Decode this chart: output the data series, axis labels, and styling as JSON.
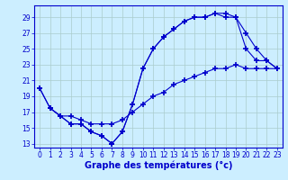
{
  "title": "Graphe des températures (°c)",
  "background_color": "#cceeff",
  "grid_color": "#aacccc",
  "line_color": "#0000cc",
  "xlim": [
    -0.5,
    23.5
  ],
  "ylim": [
    12.5,
    30.5
  ],
  "xticks": [
    0,
    1,
    2,
    3,
    4,
    5,
    6,
    7,
    8,
    9,
    10,
    11,
    12,
    13,
    14,
    15,
    16,
    17,
    18,
    19,
    20,
    21,
    22,
    23
  ],
  "yticks": [
    13,
    15,
    17,
    19,
    21,
    23,
    25,
    27,
    29
  ],
  "s1_x": [
    0,
    1,
    2,
    3,
    4,
    5,
    6,
    7,
    8,
    9,
    10,
    11,
    12,
    13,
    14,
    15,
    16,
    17,
    18,
    19,
    20,
    21,
    22,
    23
  ],
  "s1_y": [
    20.0,
    17.5,
    16.5,
    15.5,
    15.5,
    14.5,
    14.0,
    13.0,
    14.5,
    18.0,
    22.5,
    25.0,
    26.5,
    27.5,
    28.5,
    29.0,
    29.0,
    29.5,
    29.5,
    29.0,
    25.0,
    23.5,
    23.5,
    22.5
  ],
  "s2_x": [
    0,
    1,
    2,
    3,
    4,
    5,
    6,
    7,
    8,
    9,
    10,
    11,
    12,
    13,
    14,
    15,
    16,
    17,
    18,
    19,
    20,
    21,
    22,
    23
  ],
  "s2_y": [
    20.0,
    17.5,
    16.5,
    15.5,
    15.5,
    14.5,
    14.0,
    13.0,
    14.5,
    18.0,
    22.5,
    25.0,
    26.5,
    27.5,
    28.5,
    29.0,
    29.0,
    29.5,
    29.0,
    29.0,
    27.0,
    25.0,
    23.5,
    22.5
  ],
  "s3_x": [
    1,
    2,
    3,
    4,
    5,
    6,
    7,
    8,
    9,
    10,
    11,
    12,
    13,
    14,
    15,
    16,
    17,
    18,
    19,
    20,
    21,
    22,
    23
  ],
  "s3_y": [
    17.5,
    16.5,
    16.5,
    16.0,
    15.5,
    15.5,
    15.5,
    16.0,
    17.0,
    18.0,
    19.0,
    19.5,
    20.5,
    21.0,
    21.5,
    22.0,
    22.5,
    22.5,
    23.0,
    22.5,
    22.5,
    22.5,
    22.5
  ],
  "tick_fontsize": 5.5,
  "label_fontsize": 7
}
